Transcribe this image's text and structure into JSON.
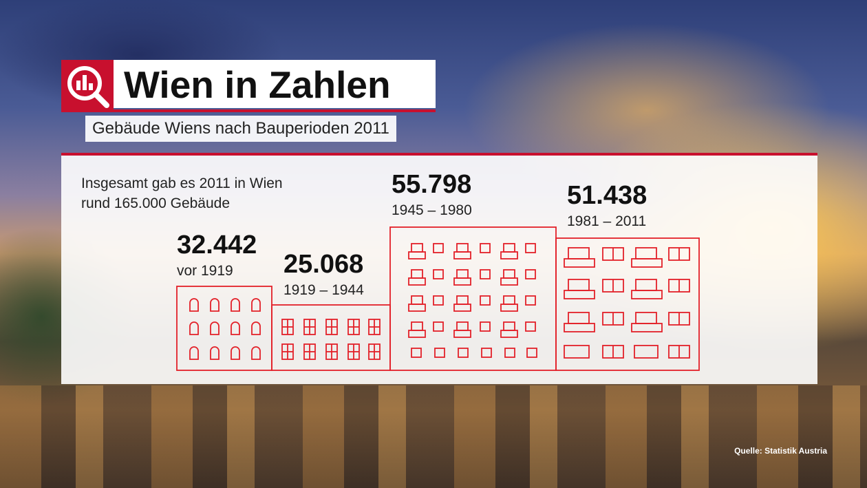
{
  "header": {
    "title": "Wien in Zahlen",
    "subtitle": "Gebäude Wiens nach Bauperioden 2011",
    "logo_icon": "bar-chart-magnifier-icon"
  },
  "intro": {
    "line1": "Insgesamt gab es 2011 in Wien",
    "line2": "rund 165.000 Gebäude"
  },
  "periods": [
    {
      "count": "32.442",
      "label": "vor 1919"
    },
    {
      "count": "25.068",
      "label": "1919 – 1944"
    },
    {
      "count": "55.798",
      "label": "1945 – 1980"
    },
    {
      "count": "51.438",
      "label": "1981 – 2011"
    }
  ],
  "source": "Quelle: Statistik Austria",
  "colors": {
    "accent": "#c8102e",
    "text": "#111111"
  }
}
